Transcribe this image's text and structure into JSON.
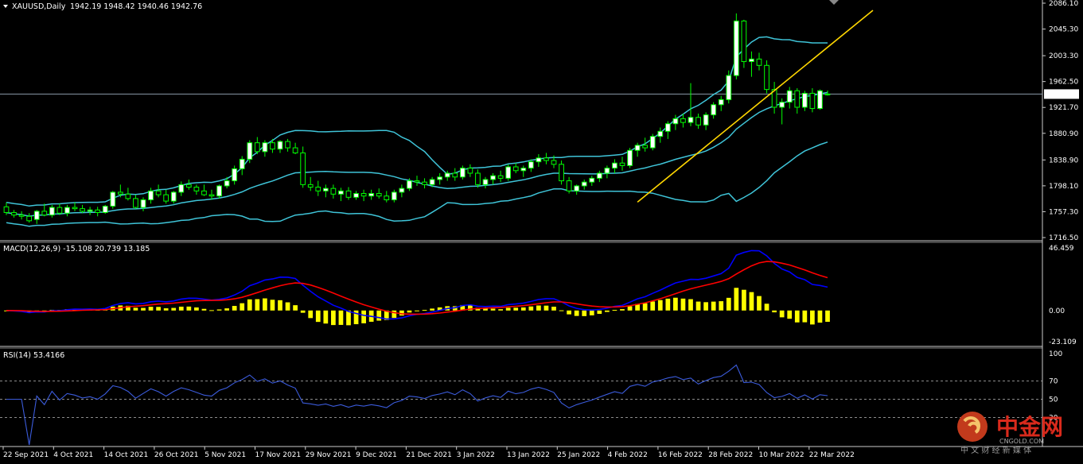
{
  "chart_data": [
    {
      "type": "candlestick",
      "symbol_line": "XAUUSD,Daily",
      "ohlc_line": "1942.19 1948.42 1940.46 1942.76",
      "current_price": 1942.76,
      "current_price_label": "1942.76",
      "ylim": [
        1716.5,
        2086.1
      ],
      "price_ticks": [
        "2086.10",
        "2045.30",
        "2003.30",
        "1962.50",
        "1921.70",
        "1880.90",
        "1838.90",
        "1798.10",
        "1757.30",
        "1716.50"
      ],
      "candles": [
        [
          1765,
          1772,
          1752,
          1756
        ],
        [
          1756,
          1760,
          1748,
          1752
        ],
        [
          1752,
          1758,
          1745,
          1750
        ],
        [
          1750,
          1755,
          1740,
          1743
        ],
        [
          1745,
          1760,
          1738,
          1758
        ],
        [
          1758,
          1770,
          1750,
          1752
        ],
        [
          1752,
          1768,
          1748,
          1764
        ],
        [
          1764,
          1770,
          1752,
          1755
        ],
        [
          1755,
          1768,
          1750,
          1764
        ],
        [
          1764,
          1772,
          1758,
          1762
        ],
        [
          1762,
          1768,
          1755,
          1758
        ],
        [
          1758,
          1765,
          1752,
          1760
        ],
        [
          1760,
          1765,
          1750,
          1756
        ],
        [
          1756,
          1768,
          1754,
          1766
        ],
        [
          1766,
          1790,
          1762,
          1788
        ],
        [
          1788,
          1800,
          1780,
          1785
        ],
        [
          1785,
          1795,
          1775,
          1778
        ],
        [
          1778,
          1784,
          1762,
          1764
        ],
        [
          1764,
          1780,
          1758,
          1776
        ],
        [
          1776,
          1795,
          1770,
          1790
        ],
        [
          1790,
          1800,
          1780,
          1784
        ],
        [
          1784,
          1792,
          1770,
          1774
        ],
        [
          1774,
          1790,
          1770,
          1788
        ],
        [
          1788,
          1805,
          1782,
          1800
        ],
        [
          1800,
          1808,
          1792,
          1796
        ],
        [
          1796,
          1800,
          1784,
          1790
        ],
        [
          1790,
          1800,
          1782,
          1784
        ],
        [
          1784,
          1792,
          1776,
          1782
        ],
        [
          1782,
          1800,
          1778,
          1798
        ],
        [
          1798,
          1812,
          1794,
          1806
        ],
        [
          1806,
          1830,
          1800,
          1825
        ],
        [
          1825,
          1845,
          1815,
          1840
        ],
        [
          1840,
          1870,
          1834,
          1866
        ],
        [
          1866,
          1875,
          1848,
          1852
        ],
        [
          1852,
          1870,
          1844,
          1866
        ],
        [
          1866,
          1872,
          1850,
          1856
        ],
        [
          1856,
          1870,
          1850,
          1868
        ],
        [
          1868,
          1872,
          1852,
          1858
        ],
        [
          1858,
          1866,
          1848,
          1850
        ],
        [
          1850,
          1860,
          1795,
          1800
        ],
        [
          1800,
          1812,
          1790,
          1796
        ],
        [
          1796,
          1806,
          1782,
          1790
        ],
        [
          1790,
          1800,
          1780,
          1794
        ],
        [
          1794,
          1800,
          1778,
          1785
        ],
        [
          1785,
          1795,
          1774,
          1790
        ],
        [
          1790,
          1796,
          1776,
          1780
        ],
        [
          1780,
          1790,
          1776,
          1786
        ],
        [
          1786,
          1792,
          1774,
          1782
        ],
        [
          1782,
          1792,
          1776,
          1786
        ],
        [
          1786,
          1794,
          1778,
          1782
        ],
        [
          1782,
          1790,
          1772,
          1776
        ],
        [
          1776,
          1792,
          1772,
          1788
        ],
        [
          1788,
          1800,
          1780,
          1794
        ],
        [
          1794,
          1810,
          1790,
          1806
        ],
        [
          1806,
          1814,
          1798,
          1804
        ],
        [
          1804,
          1810,
          1794,
          1800
        ],
        [
          1800,
          1812,
          1796,
          1808
        ],
        [
          1808,
          1818,
          1800,
          1812
        ],
        [
          1812,
          1822,
          1806,
          1818
        ],
        [
          1818,
          1826,
          1806,
          1812
        ],
        [
          1812,
          1830,
          1808,
          1826
        ],
        [
          1826,
          1832,
          1812,
          1818
        ],
        [
          1818,
          1824,
          1795,
          1800
        ],
        [
          1800,
          1812,
          1794,
          1808
        ],
        [
          1808,
          1818,
          1800,
          1814
        ],
        [
          1814,
          1822,
          1804,
          1810
        ],
        [
          1810,
          1832,
          1806,
          1828
        ],
        [
          1828,
          1834,
          1818,
          1822
        ],
        [
          1822,
          1830,
          1812,
          1826
        ],
        [
          1826,
          1840,
          1820,
          1836
        ],
        [
          1836,
          1848,
          1828,
          1842
        ],
        [
          1842,
          1850,
          1832,
          1838
        ],
        [
          1838,
          1846,
          1826,
          1832
        ],
        [
          1832,
          1838,
          1800,
          1806
        ],
        [
          1806,
          1812,
          1786,
          1790
        ],
        [
          1790,
          1800,
          1784,
          1798
        ],
        [
          1798,
          1808,
          1792,
          1804
        ],
        [
          1804,
          1814,
          1798,
          1810
        ],
        [
          1810,
          1822,
          1804,
          1818
        ],
        [
          1818,
          1830,
          1810,
          1826
        ],
        [
          1826,
          1840,
          1818,
          1834
        ],
        [
          1834,
          1844,
          1822,
          1830
        ],
        [
          1830,
          1858,
          1826,
          1854
        ],
        [
          1854,
          1866,
          1844,
          1862
        ],
        [
          1862,
          1874,
          1852,
          1858
        ],
        [
          1858,
          1880,
          1854,
          1876
        ],
        [
          1876,
          1890,
          1866,
          1884
        ],
        [
          1884,
          1900,
          1872,
          1896
        ],
        [
          1896,
          1910,
          1886,
          1904
        ],
        [
          1904,
          1912,
          1890,
          1898
        ],
        [
          1898,
          1960,
          1892,
          1906
        ],
        [
          1906,
          1912,
          1888,
          1894
        ],
        [
          1894,
          1914,
          1886,
          1910
        ],
        [
          1910,
          1930,
          1904,
          1926
        ],
        [
          1926,
          1940,
          1916,
          1934
        ],
        [
          1934,
          1980,
          1928,
          1972
        ],
        [
          1972,
          2070,
          1966,
          2058
        ],
        [
          2058,
          2060,
          1984,
          1994
        ],
        [
          1994,
          2010,
          1970,
          1998
        ],
        [
          1998,
          2008,
          1980,
          1988
        ],
        [
          1988,
          1996,
          1944,
          1950
        ],
        [
          1950,
          1962,
          1912,
          1922
        ],
        [
          1922,
          1936,
          1895,
          1930
        ],
        [
          1930,
          1954,
          1920,
          1948
        ],
        [
          1948,
          1952,
          1912,
          1922
        ],
        [
          1922,
          1948,
          1916,
          1944
        ],
        [
          1944,
          1952,
          1914,
          1920
        ],
        [
          1920,
          1950,
          1918,
          1948
        ],
        [
          1942.19,
          1948.42,
          1940.46,
          1942.76
        ]
      ]
    },
    {
      "type": "macd",
      "label": "MACD(12,26,9) -15.108 20.739 13.185",
      "ylim": [
        -23.109,
        46.459
      ],
      "ticks": [
        "46.459",
        "0.00",
        "-23.109"
      ]
    },
    {
      "type": "rsi",
      "label": "RSI(14) 53.4166",
      "ylim": [
        0,
        100
      ],
      "ticks": [
        "100",
        "70",
        "50",
        "30"
      ],
      "levels": [
        70,
        50,
        30
      ]
    }
  ],
  "date_labels": [
    "22 Sep 2021",
    "4 Oct 2021",
    "14 Oct 2021",
    "26 Oct 2021",
    "5 Nov 2021",
    "17 Nov 2021",
    "29 Nov 2021",
    "9 Dec 2021",
    "21 Dec 2021",
    "3 Jan 2022",
    "13 Jan 2022",
    "25 Jan 2022",
    "4 Feb 2022",
    "16 Feb 2022",
    "28 Feb 2022",
    "10 Mar 2022",
    "22 Mar 2022"
  ],
  "colors": {
    "background": "#000000",
    "bull_candle": "#ffffff",
    "bear_candle": "#000000",
    "wick": "#00ff00",
    "bollinger": "#3fc4d8",
    "trendline": "#ffd700",
    "macd_hist": "#ffff00",
    "macd_line": "#0000ff",
    "signal_line": "#ff0000",
    "rsi_line": "#3b5bdb"
  },
  "watermark": {
    "text": "中金网",
    "site": "CNGOLD.COM",
    "slogan": "中 文 财 经 新 媒 体"
  }
}
